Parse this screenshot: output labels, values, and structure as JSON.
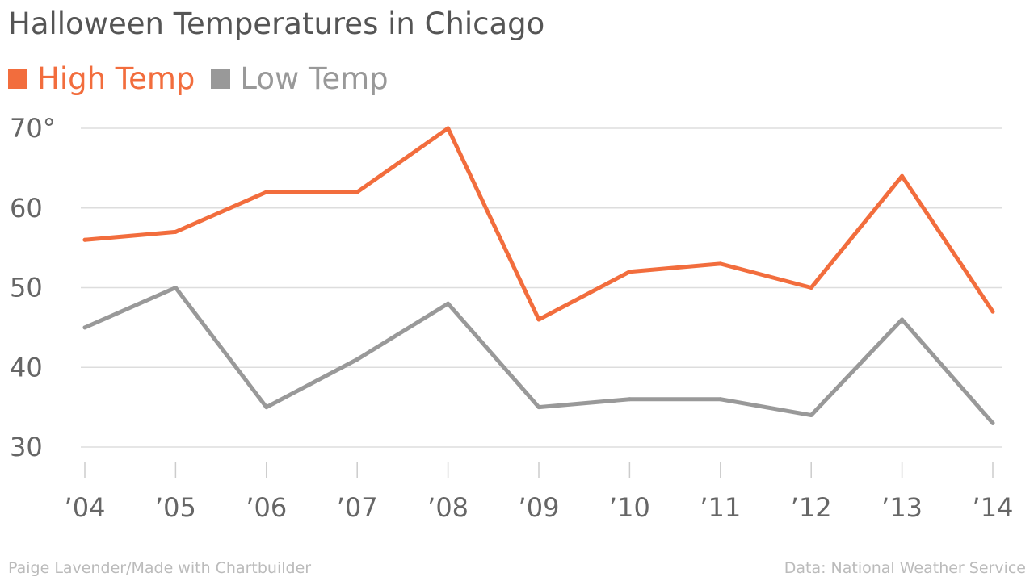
{
  "chart_data": {
    "type": "line",
    "title": "Halloween Temperatures in Chicago",
    "xlabel": "",
    "ylabel": "",
    "categories": [
      "’04",
      "’05",
      "’06",
      "’07",
      "’08",
      "’09",
      "’10",
      "’11",
      "’12",
      "’13",
      "’14"
    ],
    "series": [
      {
        "name": "High Temp",
        "color": "#f26d3d",
        "values": [
          56,
          57,
          62,
          62,
          70,
          46,
          52,
          53,
          50,
          64,
          47
        ]
      },
      {
        "name": "Low Temp",
        "color": "#999999",
        "values": [
          45,
          50,
          35,
          41,
          48,
          35,
          36,
          36,
          34,
          46,
          33
        ]
      }
    ],
    "yticks": [
      30,
      40,
      50,
      60,
      70
    ],
    "ytick_labels": [
      "30",
      "40",
      "50",
      "60",
      "70°"
    ],
    "ylim": [
      30,
      70
    ],
    "grid": true,
    "legend_position": "top-left"
  },
  "footer": {
    "credit": "Paige Lavender/Made with Chartbuilder",
    "source": "Data: National Weather Service"
  }
}
